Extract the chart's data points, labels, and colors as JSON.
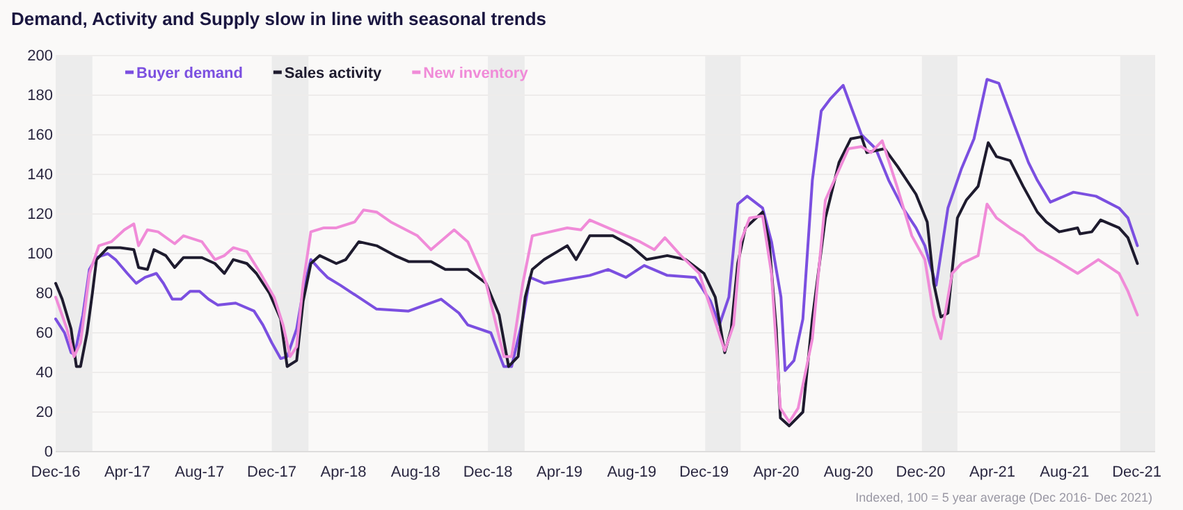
{
  "chart_data": {
    "type": "line",
    "title": "Demand, Activity and Supply slow in line with seasonal trends",
    "annotations": [
      "Indexed, 100 = 5 year average (Dec 2016- Dec 2021)"
    ],
    "xlim": [
      "2016-12-01",
      "2022-01-01"
    ],
    "xticks": [
      {
        "value": "2016-12-01",
        "label": "Dec-16"
      },
      {
        "value": "2017-04-01",
        "label": "Apr-17"
      },
      {
        "value": "2017-08-01",
        "label": "Aug-17"
      },
      {
        "value": "2017-12-01",
        "label": "Dec-17"
      },
      {
        "value": "2018-04-01",
        "label": "Apr-18"
      },
      {
        "value": "2018-08-01",
        "label": "Aug-18"
      },
      {
        "value": "2018-12-01",
        "label": "Dec-18"
      },
      {
        "value": "2019-04-01",
        "label": "Apr-19"
      },
      {
        "value": "2019-08-01",
        "label": "Aug-19"
      },
      {
        "value": "2019-12-01",
        "label": "Dec-19"
      },
      {
        "value": "2020-04-01",
        "label": "Apr-20"
      },
      {
        "value": "2020-08-01",
        "label": "Aug-20"
      },
      {
        "value": "2020-12-01",
        "label": "Dec-20"
      },
      {
        "value": "2021-04-01",
        "label": "Apr-21"
      },
      {
        "value": "2021-08-01",
        "label": "Aug-21"
      },
      {
        "value": "2021-12-01",
        "label": "Dec-21"
      }
    ],
    "ylim": [
      0,
      200
    ],
    "yticks": [
      0,
      20,
      40,
      60,
      80,
      100,
      120,
      140,
      160,
      180,
      200
    ],
    "grid": "y",
    "legend": "top left",
    "marker": "none",
    "line_style": "solid",
    "bands": [
      {
        "axis": "x",
        "from": "2016-12-01",
        "to": "2017-02-01",
        "color": "#ececec"
      },
      {
        "axis": "x",
        "from": "2017-12-01",
        "to": "2018-02-01",
        "color": "#ececec"
      },
      {
        "axis": "x",
        "from": "2018-12-01",
        "to": "2019-02-01",
        "color": "#ececec"
      },
      {
        "axis": "x",
        "from": "2019-12-03",
        "to": "2020-02-01",
        "color": "#ececec"
      },
      {
        "axis": "x",
        "from": "2020-12-03",
        "to": "2021-02-01",
        "color": "#ececec"
      },
      {
        "axis": "x",
        "from": "2021-11-03",
        "to": "2022-01-01",
        "color": "#ececec"
      }
    ],
    "series": [
      {
        "name": "Buyer demand",
        "color": "#7b4fe0",
        "x": [
          "2016-12-01",
          "2016-12-16",
          "2016-12-27",
          "2017-01-02",
          "2017-01-16",
          "2017-01-27",
          "2017-02-08",
          "2017-02-27",
          "2017-03-12",
          "2017-04-01",
          "2017-04-16",
          "2017-05-01",
          "2017-05-20",
          "2017-06-01",
          "2017-06-16",
          "2017-07-01",
          "2017-07-16",
          "2017-08-01",
          "2017-08-16",
          "2017-09-01",
          "2017-10-01",
          "2017-11-01",
          "2017-11-16",
          "2017-12-01",
          "2017-12-16",
          "2017-12-27",
          "2018-01-12",
          "2018-01-23",
          "2018-02-05",
          "2018-02-20",
          "2018-03-05",
          "2018-03-27",
          "2018-05-27",
          "2018-07-20",
          "2018-09-13",
          "2018-10-13",
          "2018-10-28",
          "2018-12-06",
          "2018-12-28",
          "2019-01-10",
          "2019-01-29",
          "2019-02-10",
          "2019-03-06",
          "2019-04-14",
          "2019-05-22",
          "2019-06-22",
          "2019-07-22",
          "2019-08-22",
          "2019-09-30",
          "2019-11-16",
          "2019-12-12",
          "2019-12-27",
          "2020-01-12",
          "2020-01-27",
          "2020-02-12",
          "2020-03-09",
          "2020-03-24",
          "2020-04-09",
          "2020-04-16",
          "2020-05-01",
          "2020-05-16",
          "2020-06-01",
          "2020-06-16",
          "2020-07-01",
          "2020-07-23",
          "2020-08-08",
          "2020-08-23",
          "2020-09-16",
          "2020-10-08",
          "2020-11-01",
          "2020-11-23",
          "2020-12-08",
          "2020-12-27",
          "2021-01-16",
          "2021-02-08",
          "2021-03-01",
          "2021-03-23",
          "2021-04-12",
          "2021-05-08",
          "2021-06-01",
          "2021-06-16",
          "2021-07-08",
          "2021-08-16",
          "2021-09-23",
          "2021-11-01",
          "2021-11-16",
          "2021-12-02"
        ],
        "values": [
          67,
          60,
          50,
          49,
          69,
          92,
          98,
          100,
          97,
          90,
          85,
          88,
          90,
          85,
          77,
          77,
          81,
          81,
          77,
          74,
          75,
          71,
          64,
          55,
          47,
          48,
          62,
          81,
          97,
          92,
          88,
          84,
          72,
          71,
          77,
          70,
          64,
          60,
          43,
          43,
          67,
          88,
          85,
          87,
          89,
          92,
          88,
          94,
          89,
          88,
          76,
          64,
          78,
          125,
          129,
          123,
          106,
          78,
          41,
          46,
          67,
          137,
          172,
          178,
          185,
          172,
          160,
          153,
          137,
          123,
          113,
          104,
          84,
          123,
          143,
          158,
          188,
          186,
          165,
          146,
          137,
          126,
          131,
          129,
          123,
          118,
          104
        ]
      },
      {
        "name": "Sales activity",
        "color": "#1e1b2e",
        "x": [
          "2016-12-01",
          "2016-12-12",
          "2016-12-27",
          "2017-01-05",
          "2017-01-12",
          "2017-01-23",
          "2017-02-01",
          "2017-02-08",
          "2017-02-27",
          "2017-03-20",
          "2017-04-12",
          "2017-04-20",
          "2017-05-05",
          "2017-05-16",
          "2017-06-05",
          "2017-06-20",
          "2017-07-05",
          "2017-08-05",
          "2017-08-27",
          "2017-09-12",
          "2017-09-27",
          "2017-10-20",
          "2017-11-05",
          "2017-11-27",
          "2017-12-16",
          "2017-12-27",
          "2018-01-12",
          "2018-01-23",
          "2018-02-05",
          "2018-02-20",
          "2018-03-20",
          "2018-04-05",
          "2018-04-27",
          "2018-05-27",
          "2018-06-27",
          "2018-07-20",
          "2018-08-27",
          "2018-09-20",
          "2018-10-28",
          "2018-11-28",
          "2018-12-20",
          "2019-01-05",
          "2019-01-21",
          "2019-02-02",
          "2019-02-14",
          "2019-03-06",
          "2019-04-14",
          "2019-04-29",
          "2019-05-22",
          "2019-06-30",
          "2019-07-30",
          "2019-08-26",
          "2019-09-30",
          "2019-10-31",
          "2019-12-01",
          "2019-12-20",
          "2020-01-05",
          "2020-01-16",
          "2020-01-27",
          "2020-02-09",
          "2020-03-09",
          "2020-03-20",
          "2020-04-01",
          "2020-04-08",
          "2020-04-23",
          "2020-05-16",
          "2020-06-01",
          "2020-06-23",
          "2020-07-16",
          "2020-08-05",
          "2020-08-23",
          "2020-09-01",
          "2020-10-01",
          "2020-10-23",
          "2020-11-23",
          "2020-12-12",
          "2020-12-23",
          "2021-01-04",
          "2021-01-16",
          "2021-02-01",
          "2021-02-16",
          "2021-03-08",
          "2021-03-25",
          "2021-04-08",
          "2021-05-01",
          "2021-05-23",
          "2021-06-16",
          "2021-07-01",
          "2021-07-23",
          "2021-08-23",
          "2021-08-27",
          "2021-09-16",
          "2021-10-01",
          "2021-11-01",
          "2021-11-16",
          "2021-12-02"
        ],
        "values": [
          85,
          77,
          62,
          43,
          43,
          60,
          80,
          97,
          103,
          103,
          102,
          93,
          92,
          102,
          99,
          93,
          98,
          98,
          95,
          90,
          97,
          95,
          90,
          80,
          67,
          43,
          46,
          76,
          95,
          99,
          95,
          97,
          106,
          104,
          99,
          96,
          96,
          92,
          92,
          85,
          69,
          43,
          48,
          78,
          92,
          97,
          104,
          97,
          109,
          109,
          104,
          97,
          99,
          97,
          90,
          78,
          50,
          62,
          95,
          113,
          121,
          106,
          62,
          17,
          13,
          20,
          67,
          118,
          146,
          158,
          159,
          151,
          153,
          144,
          130,
          116,
          85,
          68,
          70,
          118,
          127,
          134,
          156,
          149,
          147,
          134,
          121,
          116,
          111,
          113,
          110,
          111,
          117,
          113,
          108,
          95
        ]
      },
      {
        "name": "New inventory",
        "color": "#f08bd8",
        "x": [
          "2016-12-01",
          "2016-12-20",
          "2017-01-01",
          "2017-01-12",
          "2017-01-27",
          "2017-02-12",
          "2017-03-05",
          "2017-03-27",
          "2017-04-12",
          "2017-04-20",
          "2017-05-05",
          "2017-05-23",
          "2017-06-20",
          "2017-07-05",
          "2017-08-05",
          "2017-08-27",
          "2017-09-12",
          "2017-09-27",
          "2017-10-20",
          "2017-11-12",
          "2017-12-05",
          "2017-12-20",
          "2018-01-01",
          "2018-01-12",
          "2018-01-23",
          "2018-02-05",
          "2018-02-27",
          "2018-03-20",
          "2018-04-20",
          "2018-05-05",
          "2018-05-27",
          "2018-06-20",
          "2018-08-04",
          "2018-08-27",
          "2018-10-05",
          "2018-10-28",
          "2018-11-28",
          "2018-12-28",
          "2019-01-10",
          "2019-01-29",
          "2019-02-14",
          "2019-04-14",
          "2019-05-07",
          "2019-05-22",
          "2019-06-30",
          "2019-08-15",
          "2019-09-08",
          "2019-09-26",
          "2019-10-23",
          "2019-11-23",
          "2019-12-24",
          "2020-01-05",
          "2020-01-20",
          "2020-02-01",
          "2020-02-16",
          "2020-03-09",
          "2020-03-24",
          "2020-04-08",
          "2020-04-23",
          "2020-05-08",
          "2020-06-01",
          "2020-06-23",
          "2020-07-08",
          "2020-08-01",
          "2020-08-23",
          "2020-09-08",
          "2020-09-27",
          "2020-10-23",
          "2020-11-16",
          "2020-12-08",
          "2020-12-23",
          "2021-01-04",
          "2021-01-23",
          "2021-02-08",
          "2021-03-08",
          "2021-03-23",
          "2021-04-08",
          "2021-05-01",
          "2021-05-23",
          "2021-06-16",
          "2021-07-16",
          "2021-08-23",
          "2021-09-27",
          "2021-11-01",
          "2021-11-16",
          "2021-12-02"
        ],
        "values": [
          78,
          62,
          48,
          55,
          90,
          104,
          106,
          112,
          115,
          104,
          112,
          111,
          105,
          109,
          106,
          97,
          99,
          103,
          101,
          90,
          78,
          64,
          48,
          53,
          85,
          111,
          113,
          113,
          116,
          122,
          121,
          116,
          109,
          102,
          112,
          106,
          85,
          48,
          48,
          85,
          109,
          113,
          112,
          117,
          112,
          106,
          102,
          108,
          99,
          90,
          62,
          51,
          64,
          106,
          118,
          119,
          90,
          22,
          15,
          22,
          57,
          127,
          137,
          153,
          154,
          151,
          157,
          133,
          109,
          97,
          69,
          57,
          90,
          95,
          99,
          125,
          118,
          113,
          109,
          102,
          97,
          90,
          97,
          90,
          81,
          69
        ]
      }
    ]
  }
}
